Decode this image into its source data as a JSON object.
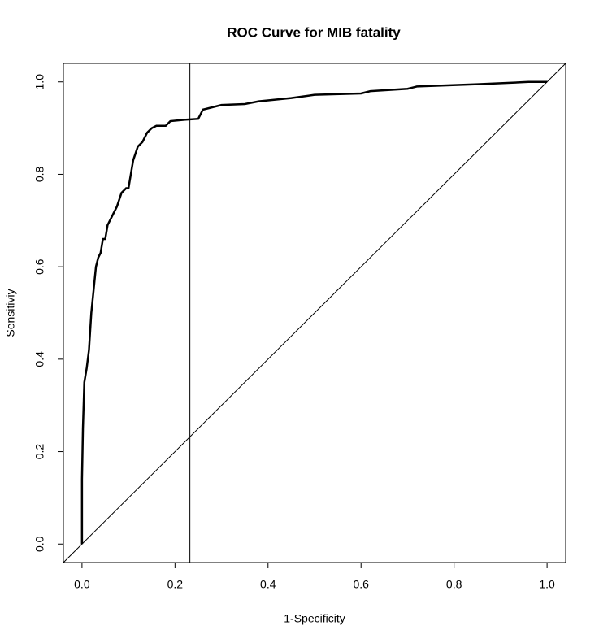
{
  "chart_data": {
    "type": "line",
    "title": "ROC Curve for MIB fatality",
    "xlabel": "1-Specificity",
    "ylabel": "Sensitiviy",
    "x": [
      0,
      0,
      0.002,
      0.005,
      0.01,
      0.015,
      0.02,
      0.025,
      0.03,
      0.035,
      0.04,
      0.045,
      0.05,
      0.055,
      0.065,
      0.075,
      0.085,
      0.095,
      0.1,
      0.105,
      0.11,
      0.12,
      0.13,
      0.14,
      0.15,
      0.16,
      0.18,
      0.19,
      0.22,
      0.25,
      0.26,
      0.28,
      0.3,
      0.35,
      0.38,
      0.4,
      0.45,
      0.5,
      0.6,
      0.62,
      0.7,
      0.72,
      0.85,
      0.92,
      0.96,
      1.0
    ],
    "series": [
      {
        "color": "#000000",
        "values": [
          0,
          0.14,
          0.25,
          0.35,
          0.38,
          0.42,
          0.5,
          0.55,
          0.6,
          0.62,
          0.63,
          0.66,
          0.66,
          0.69,
          0.71,
          0.73,
          0.76,
          0.77,
          0.77,
          0.8,
          0.83,
          0.86,
          0.87,
          0.89,
          0.9,
          0.905,
          0.905,
          0.915,
          0.918,
          0.92,
          0.94,
          0.945,
          0.95,
          0.952,
          0.958,
          0.96,
          0.965,
          0.972,
          0.975,
          0.98,
          0.985,
          0.99,
          0.995,
          0.998,
          1.0,
          1.0
        ]
      }
    ],
    "reference_line": {
      "intercept": 0,
      "slope": 1
    },
    "vline": 0.232,
    "xlim": [
      -0.04,
      1.04
    ],
    "ylim": [
      -0.04,
      1.04
    ],
    "xticks": [
      {
        "value": 0,
        "label": "0.0"
      },
      {
        "value": 0.2,
        "label": "0.2"
      },
      {
        "value": 0.4,
        "label": "0.4"
      },
      {
        "value": 0.6,
        "label": "0.6"
      },
      {
        "value": 0.8,
        "label": "0.8"
      },
      {
        "value": 1,
        "label": "1.0"
      }
    ],
    "yticks": [
      {
        "value": 0,
        "label": "0.0"
      },
      {
        "value": 0.2,
        "label": "0.2"
      },
      {
        "value": 0.4,
        "label": "0.4"
      },
      {
        "value": 0.6,
        "label": "0.6"
      },
      {
        "value": 0.8,
        "label": "0.8"
      },
      {
        "value": 1,
        "label": "1.0"
      }
    ],
    "grid": false
  }
}
